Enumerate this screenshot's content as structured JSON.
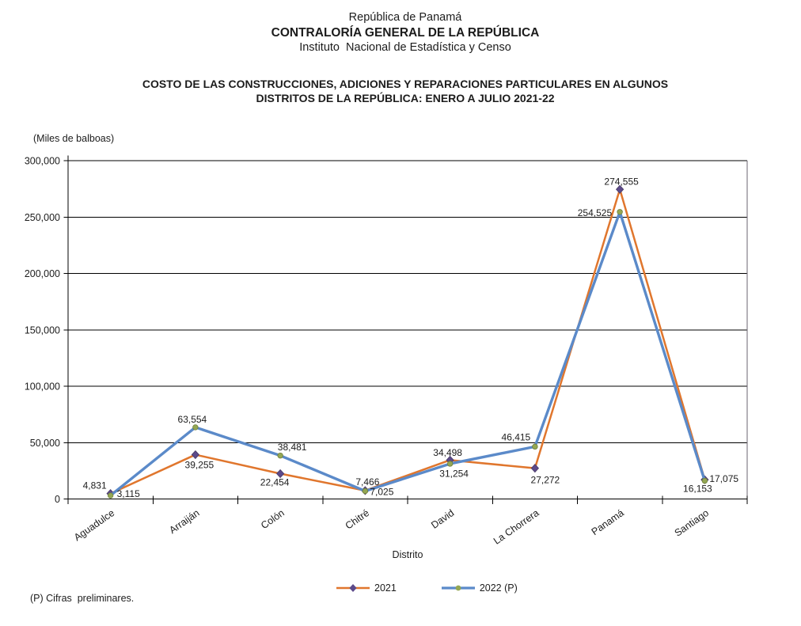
{
  "header": {
    "line1": "República de Panamá",
    "line2": "CONTRALORÍA GENERAL DE LA REPÚBLICA",
    "line3": "Instituto  Nacional de Estadística y Censo"
  },
  "title": {
    "line1": "COSTO DE LAS CONSTRUCCIONES, ADICIONES Y REPARACIONES PARTICULARES EN ALGUNOS",
    "line2": "DISTRITOS DE LA REPÚBLICA: ENERO A JULIO 2021-22"
  },
  "footnote": "(P) Cifras  preliminares.",
  "chart_data": {
    "type": "line",
    "title": "COSTO DE LAS CONSTRUCCIONES, ADICIONES Y REPARACIONES PARTICULARES EN ALGUNOS DISTRITOS DE LA REPÚBLICA: ENERO A JULIO 2021-22",
    "unit_label": "(Miles de balboas)",
    "xlabel": "Distrito",
    "ylabel": "",
    "categories": [
      "Aguadulce",
      "Arraiján",
      "Colón",
      "Chitré",
      "David",
      "La Chorrera",
      "Panamá",
      "Santiago"
    ],
    "series": [
      {
        "name": "2021",
        "color": "#e0762d",
        "marker": "diamond",
        "marker_color": "#5c4a8a",
        "values": [
          4831,
          39255,
          22454,
          7466,
          34498,
          27272,
          274555,
          17075
        ]
      },
      {
        "name": "2022 (P)",
        "color": "#5b8ac9",
        "marker": "circle",
        "marker_color": "#94a753",
        "values": [
          3115,
          63554,
          38481,
          7025,
          31254,
          46415,
          254525,
          16153
        ]
      }
    ],
    "ylim": [
      0,
      300000
    ],
    "ytick_step": 50000,
    "grid": true,
    "legend_position": "bottom",
    "category_label_angle": -35,
    "label_offsets": {
      "s0": [
        [
          -5,
          -6,
          "end"
        ],
        [
          5,
          17,
          "middle"
        ],
        [
          -7,
          15,
          "middle"
        ],
        [
          3,
          -7,
          "middle"
        ],
        [
          -3,
          -5.5,
          "middle"
        ],
        [
          13,
          19,
          "middle"
        ],
        [
          2,
          -6,
          "middle"
        ],
        [
          6,
          3,
          "start"
        ]
      ],
      "s1": [
        [
          8,
          2,
          "start"
        ],
        [
          -4,
          -6,
          "middle"
        ],
        [
          15,
          -6.5,
          "middle"
        ],
        [
          6,
          5,
          "start"
        ],
        [
          5,
          16.5,
          "middle"
        ],
        [
          -24,
          -8,
          "middle"
        ],
        [
          -10,
          5,
          "end"
        ],
        [
          -9,
          14,
          "middle"
        ]
      ]
    }
  }
}
